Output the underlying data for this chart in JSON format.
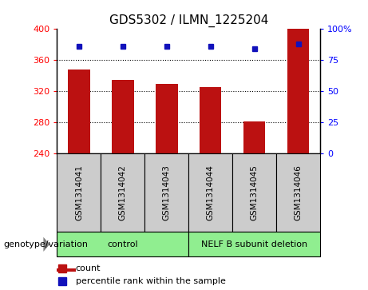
{
  "title": "GDS5302 / ILMN_1225204",
  "samples": [
    "GSM1314041",
    "GSM1314042",
    "GSM1314043",
    "GSM1314044",
    "GSM1314045",
    "GSM1314046"
  ],
  "counts": [
    348,
    335,
    330,
    325,
    281,
    400
  ],
  "percentile_ranks": [
    86,
    86,
    86,
    86,
    84,
    88
  ],
  "ymin": 240,
  "ymax": 400,
  "yticks": [
    240,
    280,
    320,
    360,
    400
  ],
  "right_yticks": [
    0,
    25,
    50,
    75,
    100
  ],
  "bar_color": "#bb1111",
  "dot_color": "#1111bb",
  "group_colors": [
    "#90ee90",
    "#90ee90"
  ],
  "group_labels": [
    "control",
    "NELF B subunit deletion"
  ],
  "label_area_color": "#cccccc",
  "legend_count_label": "count",
  "legend_pct_label": "percentile rank within the sample",
  "genotype_label": "genotype/variation"
}
